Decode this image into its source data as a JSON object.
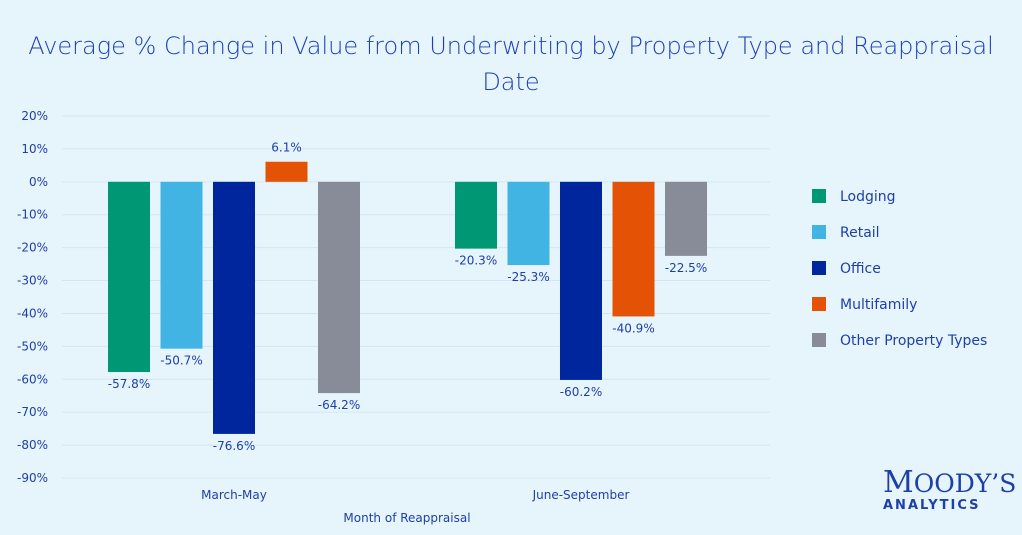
{
  "chart_data": {
    "type": "bar",
    "title": "Average % Change in Value from Underwriting by Property Type and Reappraisal Date",
    "xlabel": "Month of Reappraisal",
    "ylabel": "",
    "categories": [
      "March-May",
      "June-September"
    ],
    "ylim": [
      -90,
      20
    ],
    "yticks": [
      20,
      10,
      0,
      -10,
      -20,
      -30,
      -40,
      -50,
      -60,
      -70,
      -80,
      -90
    ],
    "grid": true,
    "legend_position": "right",
    "series": [
      {
        "name": "Lodging",
        "color": "#009874",
        "values": [
          -57.8,
          -20.3
        ]
      },
      {
        "name": "Retail",
        "color": "#42b4e4",
        "values": [
          -50.7,
          -25.3
        ]
      },
      {
        "name": "Office",
        "color": "#00269e",
        "values": [
          -76.6,
          -60.2
        ]
      },
      {
        "name": "Multifamily",
        "color": "#e35205",
        "values": [
          6.1,
          -40.9
        ]
      },
      {
        "name": "Other Property Types",
        "color": "#878c98",
        "values": [
          -64.2,
          -22.5
        ]
      }
    ]
  },
  "branding": {
    "logo_line1": "Moody's",
    "logo_line2": "ANALYTICS"
  }
}
